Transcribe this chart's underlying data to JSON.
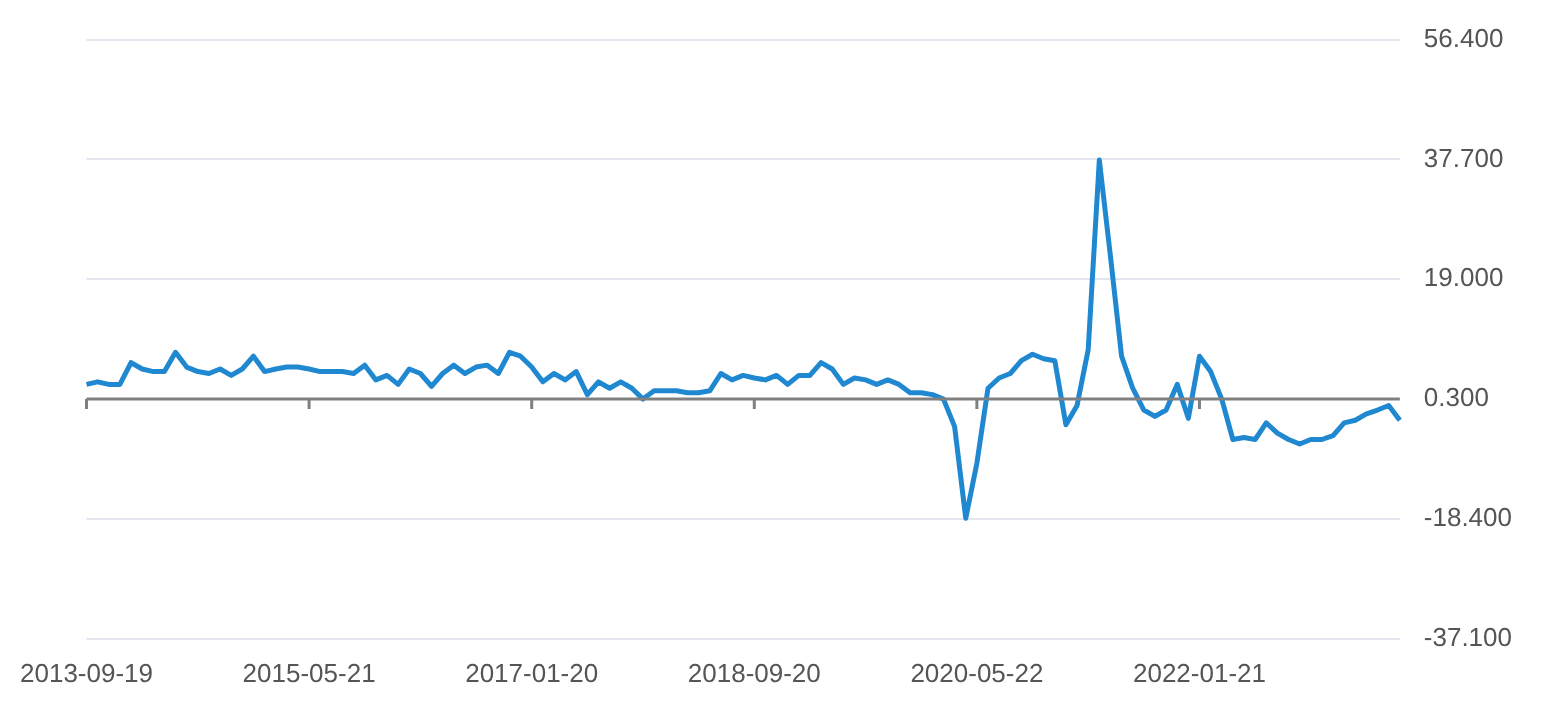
{
  "chart_data": {
    "type": "line",
    "categories": [
      "2013-09-19",
      null,
      null,
      null,
      null,
      null,
      null,
      null,
      null,
      null,
      null,
      null,
      null,
      null,
      null,
      null,
      null,
      null,
      null,
      null,
      "2015-05-21",
      null,
      null,
      null,
      null,
      null,
      null,
      null,
      null,
      null,
      null,
      null,
      null,
      null,
      null,
      null,
      null,
      null,
      null,
      null,
      "2017-01-20",
      null,
      null,
      null,
      null,
      null,
      null,
      null,
      null,
      null,
      null,
      null,
      null,
      null,
      null,
      null,
      null,
      null,
      null,
      null,
      "2018-09-20",
      null,
      null,
      null,
      null,
      null,
      null,
      null,
      null,
      null,
      null,
      null,
      null,
      null,
      null,
      null,
      null,
      null,
      null,
      null,
      "2020-05-22",
      null,
      null,
      null,
      null,
      null,
      null,
      null,
      null,
      null,
      null,
      null,
      null,
      null,
      null,
      null,
      null,
      null,
      null,
      null,
      "2022-01-21",
      null,
      null,
      null,
      null,
      null,
      null,
      null,
      null,
      null,
      null,
      null,
      null,
      null,
      null,
      null,
      null,
      null,
      null
    ],
    "series": [
      {
        "color": "#1f88d0",
        "values": [
          2.6,
          3.0,
          2.6,
          2.6,
          6.0,
          5.0,
          4.6,
          4.6,
          7.6,
          5.3,
          4.6,
          4.3,
          5.0,
          4.0,
          5.0,
          7.0,
          4.6,
          5.0,
          5.3,
          5.3,
          5.0,
          4.6,
          4.6,
          4.6,
          4.3,
          5.6,
          3.3,
          4.0,
          2.6,
          5.0,
          4.3,
          2.3,
          4.3,
          5.6,
          4.3,
          5.3,
          5.6,
          4.3,
          7.6,
          7.0,
          5.3,
          3.0,
          4.3,
          3.3,
          4.6,
          1.0,
          3.0,
          2.0,
          3.0,
          2.0,
          0.3,
          1.6,
          1.6,
          1.6,
          1.3,
          1.3,
          1.6,
          4.3,
          3.3,
          4.0,
          3.6,
          3.3,
          4.0,
          2.6,
          4.0,
          4.0,
          6.0,
          5.0,
          2.6,
          3.6,
          3.3,
          2.6,
          3.3,
          2.6,
          1.3,
          1.3,
          1.0,
          0.3,
          -4.0,
          -18.3,
          -9.7,
          2.0,
          3.6,
          4.3,
          6.3,
          7.3,
          6.6,
          6.3,
          -3.7,
          -0.7,
          8.0,
          37.6,
          22.6,
          7.0,
          2.0,
          -1.4,
          -2.4,
          -1.4,
          2.6,
          -2.7,
          7.0,
          4.6,
          0.3,
          -6.0,
          -5.7,
          -6.0,
          -3.4,
          -5.0,
          -6.0,
          -6.7,
          -6.0,
          -6.0,
          -5.4,
          -3.4,
          -3.0,
          -2.0,
          -1.4,
          -0.7,
          -3.0
        ]
      }
    ],
    "ylim": [
      -37.1,
      56.4
    ],
    "yticks": [
      {
        "value": -37.1,
        "label": "-37.100"
      },
      {
        "value": -18.4,
        "label": "-18.400"
      },
      {
        "value": 0.3,
        "label": "0.300"
      },
      {
        "value": 19,
        "label": "19.000"
      },
      {
        "value": 37.7,
        "label": "37.700"
      },
      {
        "value": 56.4,
        "label": "56.400"
      }
    ],
    "grid": "y",
    "marker": "none",
    "line_style": "solid",
    "legend": false,
    "ref_lines": [
      {
        "axis": "y",
        "value": 0.3,
        "color": "#808080"
      }
    ]
  }
}
